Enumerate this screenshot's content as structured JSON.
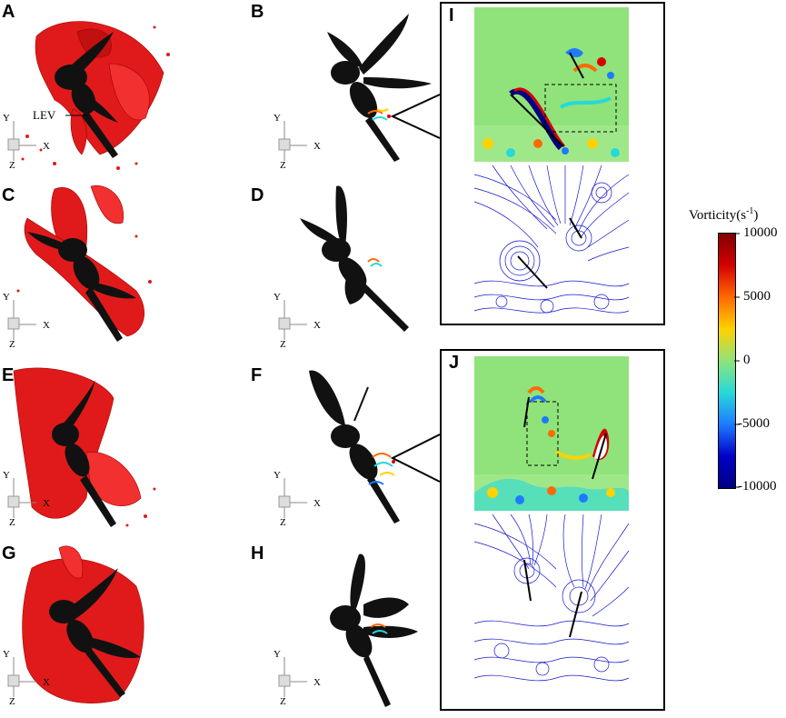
{
  "panels": {
    "A": "A",
    "B": "B",
    "C": "C",
    "D": "D",
    "E": "E",
    "F": "F",
    "G": "G",
    "H": "H",
    "I": "I",
    "J": "J"
  },
  "annotation": {
    "lev": "LEV"
  },
  "axis_triad": {
    "x": "X",
    "y": "Y",
    "z": "Z"
  },
  "colorbar": {
    "title_main": "Vorticity(s",
    "title_sup": "-1",
    "title_end": ")",
    "ticks": [
      "10000",
      "5000",
      "0",
      "-5000",
      "-10000"
    ],
    "colors": [
      "#7f0000",
      "#d40000",
      "#ff6a00",
      "#ffd200",
      "#8fe37a",
      "#26d9d9",
      "#1e7bff",
      "#0000c8",
      "#000080"
    ]
  },
  "colors": {
    "isosurface": "#e01a1a",
    "dragonfly": "#111111",
    "field_background": "#8fe37a",
    "streamline": "#1515d0"
  }
}
